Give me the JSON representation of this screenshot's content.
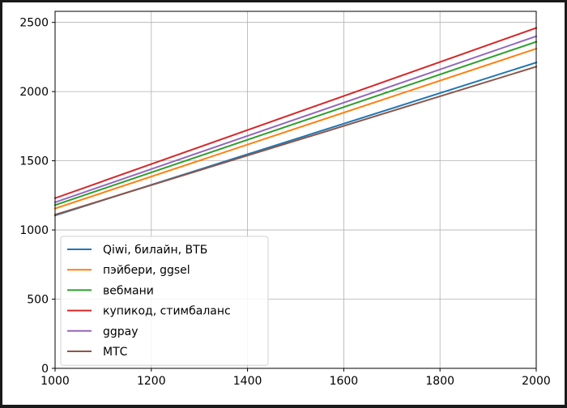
{
  "chart_data": {
    "type": "line",
    "title": "",
    "xlabel": "",
    "ylabel": "",
    "xlim": [
      1000,
      2000
    ],
    "ylim": [
      0,
      2580
    ],
    "xticks": [
      1000,
      1200,
      1400,
      1600,
      1800,
      2000
    ],
    "yticks": [
      0,
      500,
      1000,
      1500,
      2000,
      2500
    ],
    "grid": true,
    "legend_position": "lower-left",
    "series": [
      {
        "name": "Qiwi, билайн, ВТБ",
        "color": "#1f77b4",
        "x": [
          1000,
          2000
        ],
        "y": [
          1105,
          2210
        ]
      },
      {
        "name": "пэйбери, ggsel",
        "color": "#ff7f0e",
        "x": [
          1000,
          2000
        ],
        "y": [
          1155,
          2310
        ]
      },
      {
        "name": "вебмани",
        "color": "#2ca02c",
        "x": [
          1000,
          2000
        ],
        "y": [
          1180,
          2360
        ]
      },
      {
        "name": "купикод, стимбаланс",
        "color": "#d62728",
        "x": [
          1000,
          2000
        ],
        "y": [
          1230,
          2460
        ]
      },
      {
        "name": "ggpay",
        "color": "#9467bd",
        "x": [
          1000,
          2000
        ],
        "y": [
          1200,
          2400
        ]
      },
      {
        "name": "МТС",
        "color": "#8c564b",
        "x": [
          1000,
          2000
        ],
        "y": [
          1110,
          2180
        ]
      }
    ]
  }
}
